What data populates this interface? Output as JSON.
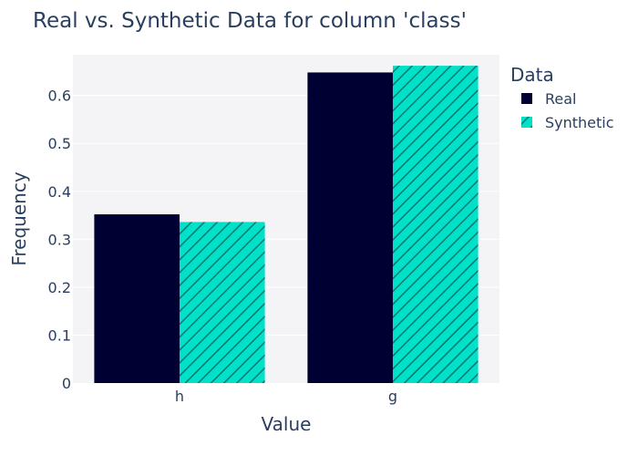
{
  "chart_data": {
    "type": "bar",
    "title": "Real vs. Synthetic Data for column 'class'",
    "xlabel": "Value",
    "ylabel": "Frequency",
    "categories": [
      "h",
      "g"
    ],
    "ylim": [
      0,
      0.685
    ],
    "yticks": [
      0,
      0.1,
      0.2,
      0.3,
      0.4,
      0.5,
      0.6
    ],
    "ytick_labels": [
      "0",
      "0.1",
      "0.2",
      "0.3",
      "0.4",
      "0.5",
      "0.6"
    ],
    "grid": true,
    "legend": {
      "title": "Data",
      "placement": "right"
    },
    "series": [
      {
        "name": "Real",
        "values": [
          0.352,
          0.648
        ],
        "color": "#000033",
        "pattern": "none"
      },
      {
        "name": "Synthetic",
        "values": [
          0.336,
          0.662
        ],
        "color": "#01e0c9",
        "pattern": "diagonal-hatch"
      }
    ],
    "plot_background": "#f4f4f7"
  }
}
